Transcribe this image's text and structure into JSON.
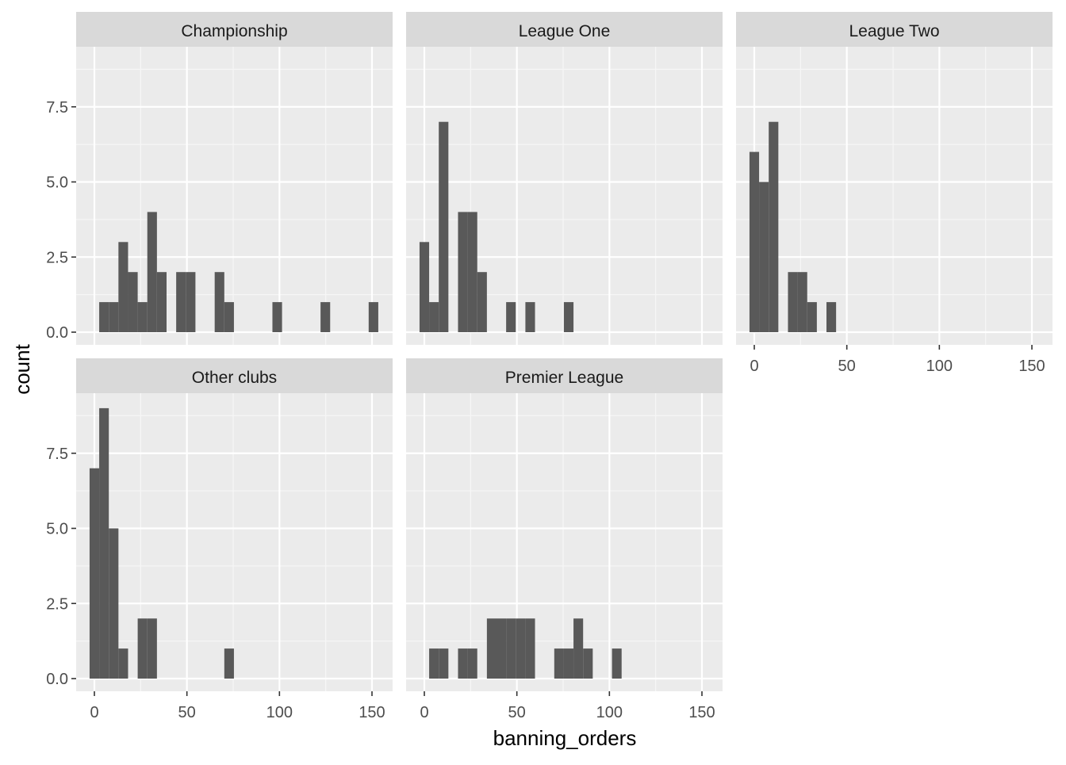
{
  "chart_data": {
    "type": "bar",
    "subtype": "faceted-histogram",
    "xlabel": "banning_orders",
    "ylabel": "count",
    "xlim": [
      -10,
      160
    ],
    "ylim": [
      0,
      9
    ],
    "bin_width": 5.2,
    "x_ticks": [
      0,
      50,
      100,
      150
    ],
    "x_tick_labels": [
      "0",
      "50",
      "100",
      "150"
    ],
    "y_ticks": [
      0,
      2.5,
      5,
      7.5
    ],
    "y_tick_labels": [
      "0.0",
      "2.5",
      "5.0",
      "7.5"
    ],
    "grid": true,
    "bar_color": "#595959",
    "panel_background": "#ebebeb",
    "strip_background": "#d9d9d9",
    "facets": [
      {
        "title": "Championship",
        "bars": [
          {
            "x": 5.2,
            "count": 1
          },
          {
            "x": 10.4,
            "count": 1
          },
          {
            "x": 15.6,
            "count": 3
          },
          {
            "x": 20.8,
            "count": 2
          },
          {
            "x": 26.0,
            "count": 1
          },
          {
            "x": 31.2,
            "count": 4
          },
          {
            "x": 36.4,
            "count": 2
          },
          {
            "x": 46.8,
            "count": 2
          },
          {
            "x": 52.0,
            "count": 2
          },
          {
            "x": 67.6,
            "count": 2
          },
          {
            "x": 72.8,
            "count": 1
          },
          {
            "x": 98.8,
            "count": 1
          },
          {
            "x": 124.8,
            "count": 1
          },
          {
            "x": 150.8,
            "count": 1
          }
        ]
      },
      {
        "title": "League One",
        "bars": [
          {
            "x": 0,
            "count": 3
          },
          {
            "x": 5.2,
            "count": 1
          },
          {
            "x": 10.4,
            "count": 7
          },
          {
            "x": 20.8,
            "count": 4
          },
          {
            "x": 26.0,
            "count": 4
          },
          {
            "x": 31.2,
            "count": 2
          },
          {
            "x": 46.8,
            "count": 1
          },
          {
            "x": 57.2,
            "count": 1
          },
          {
            "x": 78.0,
            "count": 1
          }
        ]
      },
      {
        "title": "League Two",
        "bars": [
          {
            "x": 0,
            "count": 6
          },
          {
            "x": 5.2,
            "count": 5
          },
          {
            "x": 10.4,
            "count": 7
          },
          {
            "x": 20.8,
            "count": 2
          },
          {
            "x": 26.0,
            "count": 2
          },
          {
            "x": 31.2,
            "count": 1
          },
          {
            "x": 41.6,
            "count": 1
          }
        ]
      },
      {
        "title": "Other clubs",
        "bars": [
          {
            "x": 0,
            "count": 7
          },
          {
            "x": 5.2,
            "count": 9
          },
          {
            "x": 10.4,
            "count": 5
          },
          {
            "x": 15.6,
            "count": 1
          },
          {
            "x": 26.0,
            "count": 2
          },
          {
            "x": 31.2,
            "count": 2
          },
          {
            "x": 72.8,
            "count": 1
          }
        ]
      },
      {
        "title": "Premier League",
        "bars": [
          {
            "x": 5.2,
            "count": 1
          },
          {
            "x": 10.4,
            "count": 1
          },
          {
            "x": 20.8,
            "count": 1
          },
          {
            "x": 26.0,
            "count": 1
          },
          {
            "x": 36.4,
            "count": 2
          },
          {
            "x": 41.6,
            "count": 2
          },
          {
            "x": 46.8,
            "count": 2
          },
          {
            "x": 52.0,
            "count": 2
          },
          {
            "x": 57.2,
            "count": 2
          },
          {
            "x": 72.8,
            "count": 1
          },
          {
            "x": 78.0,
            "count": 1
          },
          {
            "x": 83.2,
            "count": 2
          },
          {
            "x": 88.4,
            "count": 1
          },
          {
            "x": 104.0,
            "count": 1
          }
        ]
      }
    ]
  }
}
